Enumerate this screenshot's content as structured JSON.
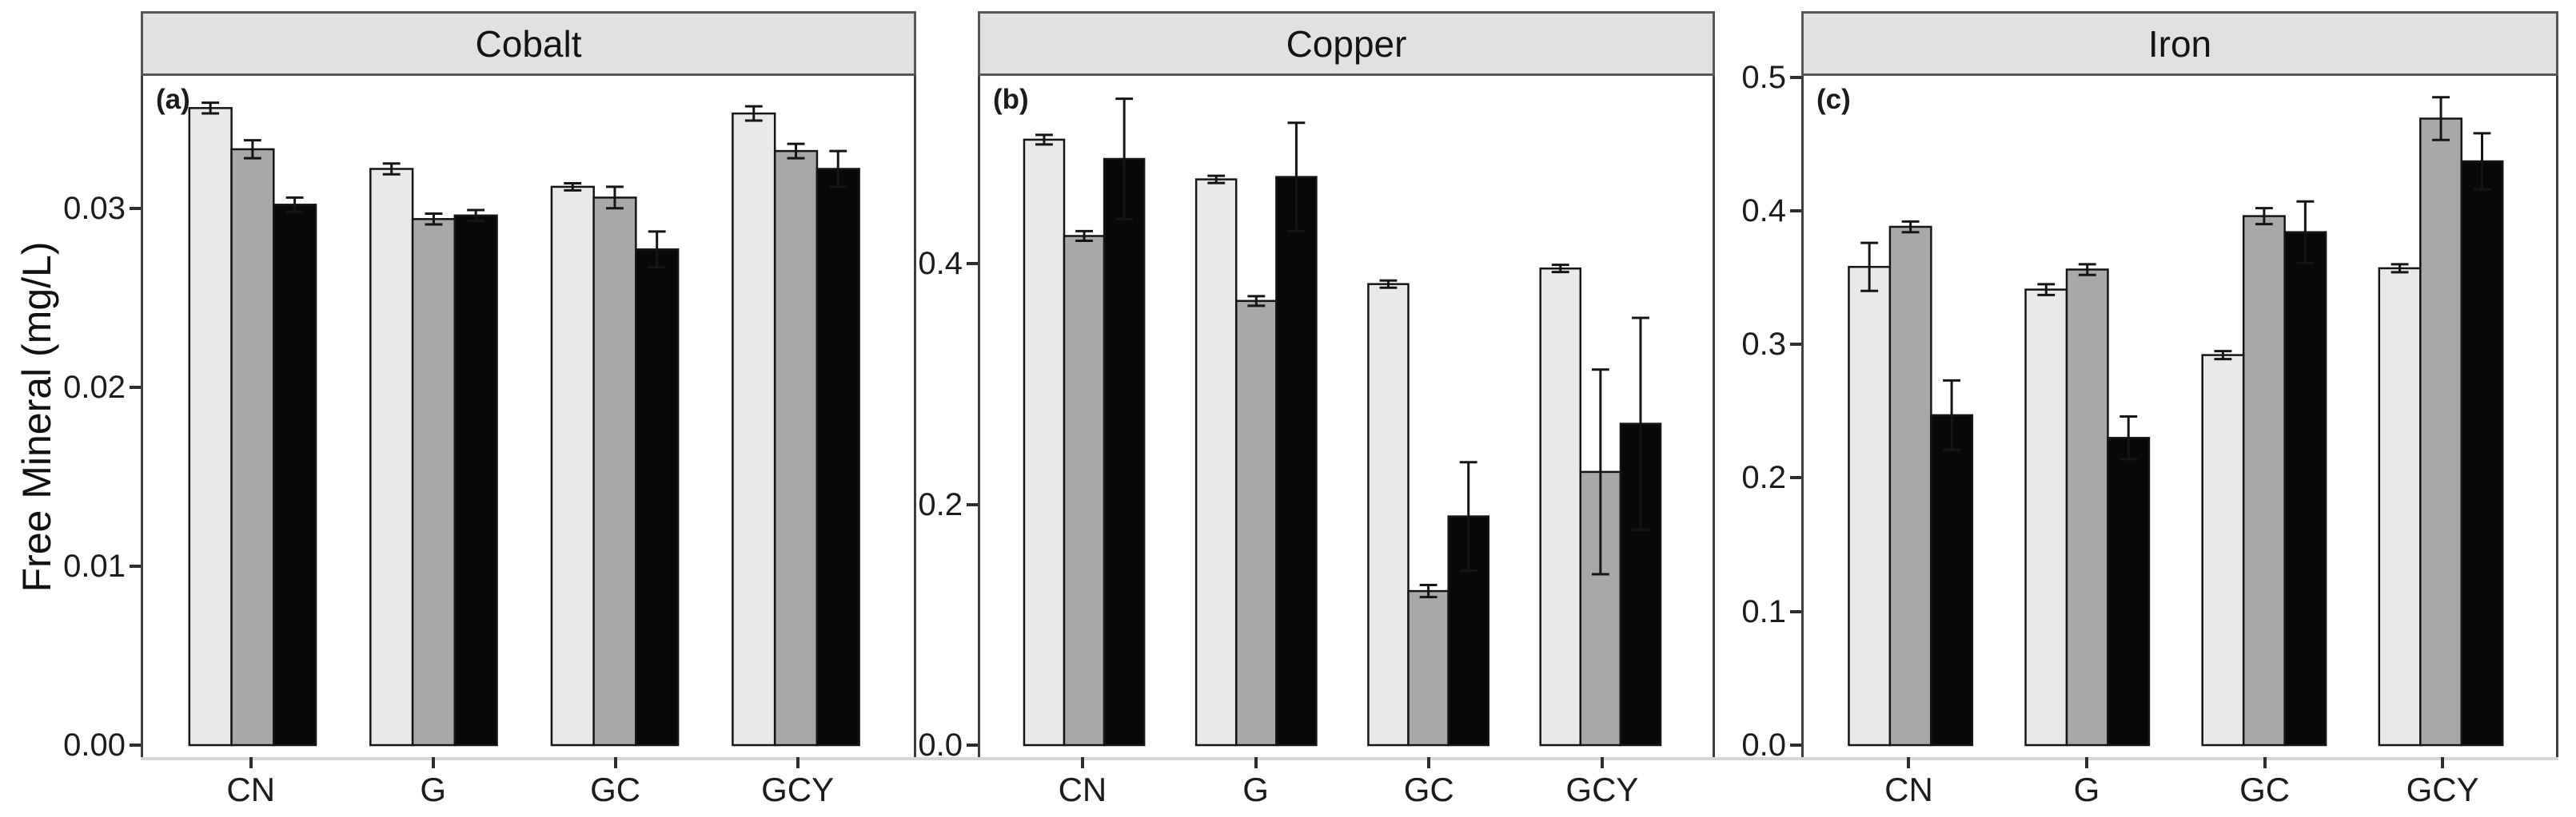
{
  "figure": {
    "y_axis_title": "Free Mineral (mg/L)"
  },
  "colors": {
    "bar_fills": [
      "#e9e9e9",
      "#a8a8a8",
      "#080808"
    ],
    "bar_stroke": "#151515",
    "strip_background": "#e1e1e1",
    "strip_border": "#565656",
    "panel_border": "#3e3e3e",
    "axis_line": "#d6d6d6",
    "tick_mark": "#2e2e2e",
    "text": "#1c1c1c"
  },
  "chart_data": [
    {
      "type": "bar",
      "title": "Cobalt",
      "panel_label": "(a)",
      "ylabel": "Free Mineral (mg/L)",
      "categories": [
        "CN",
        "G",
        "GC",
        "GCY"
      ],
      "yticks": [
        0,
        0.01,
        0.02,
        0.03
      ],
      "ytick_labels": [
        "0.00",
        "0.01",
        "0.02",
        "0.03"
      ],
      "ylim": [
        0,
        0.0374
      ],
      "grid": false,
      "legend": "none",
      "series": [
        {
          "name": "light-gray",
          "fill": "#e9e9e9",
          "values": [
            0.0356,
            0.0322,
            0.0312,
            0.0353
          ],
          "errors": [
            0.0003,
            0.0003,
            0.0002,
            0.0004
          ]
        },
        {
          "name": "medium-gray",
          "fill": "#a8a8a8",
          "values": [
            0.0333,
            0.0294,
            0.0306,
            0.0332
          ],
          "errors": [
            0.0005,
            0.0003,
            0.0006,
            0.0004
          ]
        },
        {
          "name": "black",
          "fill": "#080808",
          "values": [
            0.0302,
            0.0296,
            0.0277,
            0.0322
          ],
          "errors": [
            0.0004,
            0.0003,
            0.001,
            0.001
          ]
        }
      ]
    },
    {
      "type": "bar",
      "title": "Copper",
      "panel_label": "(b)",
      "ylabel": "Free Mineral (mg/L)",
      "categories": [
        "CN",
        "G",
        "GC",
        "GCY"
      ],
      "yticks": [
        0,
        0.2,
        0.4
      ],
      "ytick_labels": [
        "0.0",
        "0.2",
        "0.4"
      ],
      "ylim": [
        0,
        0.556
      ],
      "grid": false,
      "legend": "none",
      "series": [
        {
          "name": "light-gray",
          "fill": "#e9e9e9",
          "values": [
            0.503,
            0.47,
            0.383,
            0.396
          ],
          "errors": [
            0.004,
            0.003,
            0.003,
            0.003
          ]
        },
        {
          "name": "medium-gray",
          "fill": "#a8a8a8",
          "values": [
            0.423,
            0.369,
            0.128,
            0.227
          ],
          "errors": [
            0.004,
            0.004,
            0.005,
            0.085
          ]
        },
        {
          "name": "black",
          "fill": "#080808",
          "values": [
            0.487,
            0.472,
            0.19,
            0.267
          ],
          "errors": [
            0.05,
            0.045,
            0.045,
            0.088
          ]
        }
      ]
    },
    {
      "type": "bar",
      "title": "Iron",
      "panel_label": "(c)",
      "ylabel": "Free Mineral (mg/L)",
      "categories": [
        "CN",
        "G",
        "GC",
        "GCY"
      ],
      "yticks": [
        0,
        0.1,
        0.2,
        0.3,
        0.4,
        0.5
      ],
      "ytick_labels": [
        "0.0",
        "0.1",
        "0.2",
        "0.3",
        "0.4",
        "0.5"
      ],
      "ylim": [
        0,
        0.501
      ],
      "grid": false,
      "legend": "none",
      "series": [
        {
          "name": "light-gray",
          "fill": "#e9e9e9",
          "values": [
            0.358,
            0.341,
            0.292,
            0.357
          ],
          "errors": [
            0.018,
            0.004,
            0.003,
            0.003
          ]
        },
        {
          "name": "medium-gray",
          "fill": "#a8a8a8",
          "values": [
            0.388,
            0.356,
            0.396,
            0.469
          ],
          "errors": [
            0.004,
            0.004,
            0.006,
            0.016
          ]
        },
        {
          "name": "black",
          "fill": "#080808",
          "values": [
            0.247,
            0.23,
            0.384,
            0.437
          ],
          "errors": [
            0.026,
            0.016,
            0.023,
            0.021
          ]
        }
      ]
    }
  ]
}
